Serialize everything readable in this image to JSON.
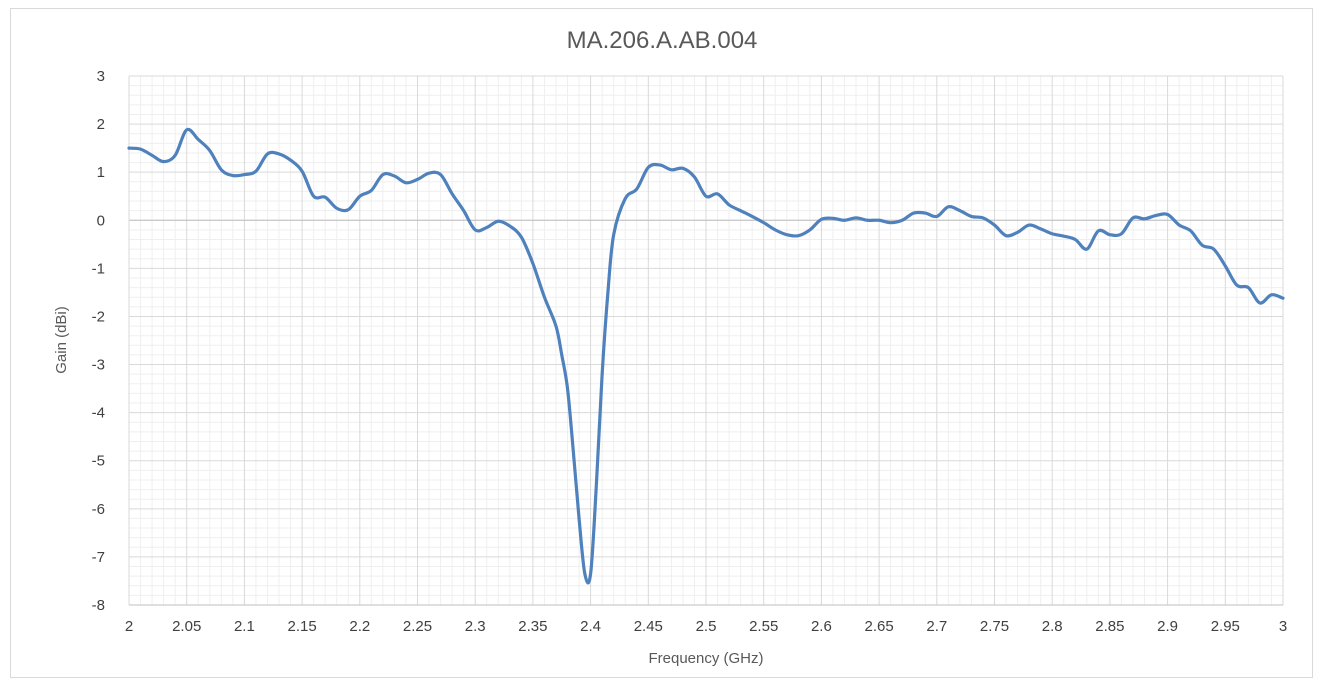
{
  "chart_data": {
    "type": "line",
    "title": "MA.206.A.AB.004",
    "xlabel": "Frequency (GHz)",
    "ylabel": "Gain (dBi)",
    "xlim": [
      2,
      3
    ],
    "ylim": [
      -8,
      3
    ],
    "x_ticks": [
      "2",
      "2.05",
      "2.1",
      "2.15",
      "2.2",
      "2.25",
      "2.3",
      "2.35",
      "2.4",
      "2.45",
      "2.5",
      "2.55",
      "2.6",
      "2.65",
      "2.7",
      "2.75",
      "2.8",
      "2.85",
      "2.9",
      "2.95",
      "3"
    ],
    "y_ticks": [
      "3",
      "2",
      "1",
      "0",
      "-1",
      "-2",
      "-3",
      "-4",
      "-5",
      "-6",
      "-7",
      "-8"
    ],
    "grid": true,
    "legend": "none",
    "series": [
      {
        "color": "#4f81bd",
        "x": [
          2.0,
          2.01,
          2.02,
          2.03,
          2.04,
          2.05,
          2.06,
          2.07,
          2.08,
          2.09,
          2.1,
          2.11,
          2.12,
          2.13,
          2.14,
          2.15,
          2.16,
          2.17,
          2.18,
          2.19,
          2.2,
          2.21,
          2.22,
          2.23,
          2.24,
          2.25,
          2.26,
          2.27,
          2.28,
          2.29,
          2.3,
          2.31,
          2.32,
          2.33,
          2.34,
          2.35,
          2.36,
          2.37,
          2.375,
          2.38,
          2.385,
          2.39,
          2.395,
          2.4,
          2.405,
          2.41,
          2.415,
          2.42,
          2.43,
          2.44,
          2.45,
          2.46,
          2.47,
          2.48,
          2.49,
          2.5,
          2.51,
          2.52,
          2.53,
          2.54,
          2.55,
          2.56,
          2.57,
          2.58,
          2.59,
          2.6,
          2.61,
          2.62,
          2.63,
          2.64,
          2.65,
          2.66,
          2.67,
          2.68,
          2.69,
          2.7,
          2.71,
          2.72,
          2.73,
          2.74,
          2.75,
          2.76,
          2.77,
          2.78,
          2.79,
          2.8,
          2.81,
          2.82,
          2.83,
          2.84,
          2.85,
          2.86,
          2.87,
          2.88,
          2.89,
          2.9,
          2.91,
          2.92,
          2.93,
          2.94,
          2.95,
          2.96,
          2.97,
          2.98,
          2.99,
          3.0
        ],
        "y": [
          1.5,
          1.48,
          1.35,
          1.22,
          1.35,
          1.88,
          1.68,
          1.45,
          1.05,
          0.93,
          0.95,
          1.02,
          1.38,
          1.38,
          1.25,
          1.02,
          0.5,
          0.48,
          0.25,
          0.22,
          0.5,
          0.62,
          0.95,
          0.92,
          0.78,
          0.85,
          0.98,
          0.95,
          0.55,
          0.2,
          -0.2,
          -0.15,
          -0.02,
          -0.12,
          -0.35,
          -0.9,
          -1.6,
          -2.2,
          -2.8,
          -3.5,
          -4.8,
          -6.2,
          -7.35,
          -7.35,
          -5.5,
          -3.2,
          -1.5,
          -0.3,
          0.45,
          0.65,
          1.1,
          1.15,
          1.05,
          1.08,
          0.9,
          0.5,
          0.55,
          0.32,
          0.2,
          0.08,
          -0.05,
          -0.2,
          -0.3,
          -0.32,
          -0.2,
          0.02,
          0.04,
          0.0,
          0.05,
          0.0,
          0.0,
          -0.05,
          0.0,
          0.15,
          0.15,
          0.08,
          0.28,
          0.2,
          0.08,
          0.05,
          -0.1,
          -0.32,
          -0.25,
          -0.1,
          -0.18,
          -0.28,
          -0.33,
          -0.4,
          -0.6,
          -0.22,
          -0.3,
          -0.28,
          0.05,
          0.03,
          0.1,
          0.12,
          -0.1,
          -0.22,
          -0.52,
          -0.6,
          -0.95,
          -1.35,
          -1.4,
          -1.72,
          -1.55,
          -1.62
        ]
      }
    ]
  }
}
